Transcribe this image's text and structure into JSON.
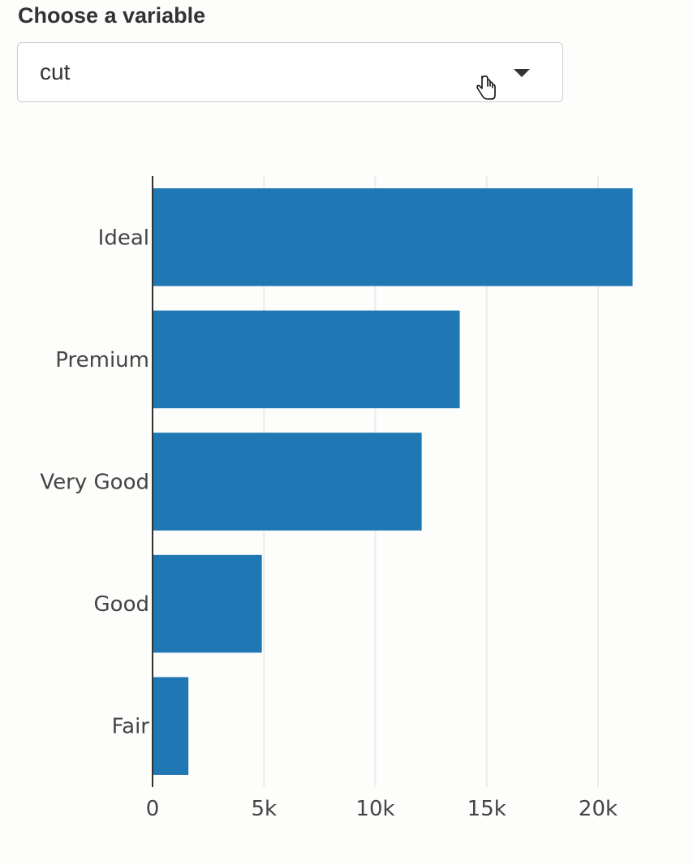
{
  "control": {
    "label": "Choose a variable",
    "selected": "cut"
  },
  "colors": {
    "bar": "#1f77b4",
    "grid": "#ececec",
    "axis": "#333333"
  },
  "chart_data": {
    "type": "bar",
    "orientation": "horizontal",
    "categories": [
      "Ideal",
      "Premium",
      "Very Good",
      "Good",
      "Fair"
    ],
    "values": [
      21551,
      13791,
      12082,
      4906,
      1610
    ],
    "xlim": [
      0,
      22000
    ],
    "xticks": [
      0,
      5000,
      10000,
      15000,
      20000
    ],
    "xtick_labels": [
      "0",
      "5k",
      "10k",
      "15k",
      "20k"
    ],
    "grid": true,
    "legend": false
  }
}
